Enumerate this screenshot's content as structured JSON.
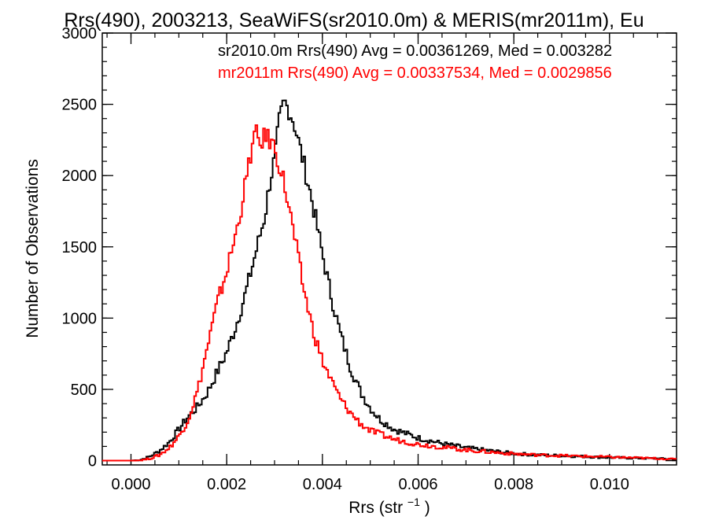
{
  "chart_data": {
    "type": "line",
    "title": "Rrs(490), 2003213, SeaWiFS(sr2010.0m) & MERIS(mr2011m), Eu",
    "xlabel": "Rrs (str",
    "xlabel_superscript": "−1",
    "xlabel_suffix": ")",
    "ylabel": "Number of Observations",
    "xlim": [
      -0.0006,
      0.0114
    ],
    "ylim": [
      -30,
      3000
    ],
    "xticks": [
      0.0,
      0.002,
      0.004,
      0.006,
      0.008,
      0.01
    ],
    "xtick_labels": [
      "0.000",
      "0.002",
      "0.004",
      "0.006",
      "0.008",
      "0.010"
    ],
    "yticks": [
      0,
      500,
      1000,
      1500,
      2000,
      2500,
      3000
    ],
    "ytick_labels": [
      "0",
      "500",
      "1000",
      "1500",
      "2000",
      "2500",
      "3000"
    ],
    "step": "histogram",
    "legend_placement": "top-right",
    "series": [
      {
        "name": "sr2010.0m",
        "legend_text": "sr2010.0m Rrs(490) Avg = 0.00361269, Med = 0.003282",
        "color": "#000000",
        "points": [
          [
            -0.0006,
            0
          ],
          [
            0.0,
            0
          ],
          [
            0.0002,
            5
          ],
          [
            0.0004,
            30
          ],
          [
            0.0006,
            70
          ],
          [
            0.0008,
            130
          ],
          [
            0.001,
            220
          ],
          [
            0.0012,
            310
          ],
          [
            0.0014,
            380
          ],
          [
            0.0016,
            480
          ],
          [
            0.0018,
            620
          ],
          [
            0.002,
            760
          ],
          [
            0.0022,
            950
          ],
          [
            0.0024,
            1180
          ],
          [
            0.0026,
            1450
          ],
          [
            0.0028,
            1720
          ],
          [
            0.0029,
            1950
          ],
          [
            0.003,
            2120
          ],
          [
            0.0031,
            2380
          ],
          [
            0.0032,
            2520
          ],
          [
            0.0033,
            2460
          ],
          [
            0.0034,
            2380
          ],
          [
            0.0036,
            2100
          ],
          [
            0.0038,
            1800
          ],
          [
            0.004,
            1450
          ],
          [
            0.0042,
            1130
          ],
          [
            0.0044,
            860
          ],
          [
            0.0046,
            640
          ],
          [
            0.0048,
            480
          ],
          [
            0.005,
            370
          ],
          [
            0.0052,
            290
          ],
          [
            0.0055,
            220
          ],
          [
            0.006,
            160
          ],
          [
            0.0065,
            120
          ],
          [
            0.007,
            90
          ],
          [
            0.0075,
            70
          ],
          [
            0.008,
            50
          ],
          [
            0.0085,
            40
          ],
          [
            0.009,
            35
          ],
          [
            0.0095,
            28
          ],
          [
            0.01,
            22
          ],
          [
            0.0105,
            18
          ],
          [
            0.011,
            15
          ],
          [
            0.0114,
            10
          ]
        ]
      },
      {
        "name": "mr2011m",
        "legend_text": "mr2011m Rrs(490) Avg = 0.00337534, Med = 0.0029856",
        "color": "#ff0000",
        "points": [
          [
            -0.0006,
            0
          ],
          [
            0.0,
            0
          ],
          [
            0.0002,
            3
          ],
          [
            0.0004,
            15
          ],
          [
            0.0006,
            40
          ],
          [
            0.0008,
            90
          ],
          [
            0.001,
            170
          ],
          [
            0.0012,
            290
          ],
          [
            0.0014,
            500
          ],
          [
            0.0016,
            800
          ],
          [
            0.0018,
            1100
          ],
          [
            0.002,
            1330
          ],
          [
            0.0022,
            1600
          ],
          [
            0.0024,
            1950
          ],
          [
            0.0025,
            2150
          ],
          [
            0.0026,
            2300
          ],
          [
            0.0027,
            2220
          ],
          [
            0.0028,
            2280
          ],
          [
            0.0029,
            2250
          ],
          [
            0.003,
            2200
          ],
          [
            0.0032,
            1950
          ],
          [
            0.0034,
            1600
          ],
          [
            0.0036,
            1220
          ],
          [
            0.0038,
            920
          ],
          [
            0.004,
            700
          ],
          [
            0.0042,
            550
          ],
          [
            0.0044,
            420
          ],
          [
            0.0046,
            330
          ],
          [
            0.0048,
            260
          ],
          [
            0.005,
            210
          ],
          [
            0.0055,
            150
          ],
          [
            0.006,
            115
          ],
          [
            0.0065,
            95
          ],
          [
            0.007,
            75
          ],
          [
            0.0075,
            60
          ],
          [
            0.008,
            48
          ],
          [
            0.0085,
            40
          ],
          [
            0.009,
            35
          ],
          [
            0.0095,
            30
          ],
          [
            0.01,
            25
          ],
          [
            0.0105,
            20
          ],
          [
            0.011,
            15
          ],
          [
            0.0114,
            10
          ]
        ]
      }
    ]
  }
}
